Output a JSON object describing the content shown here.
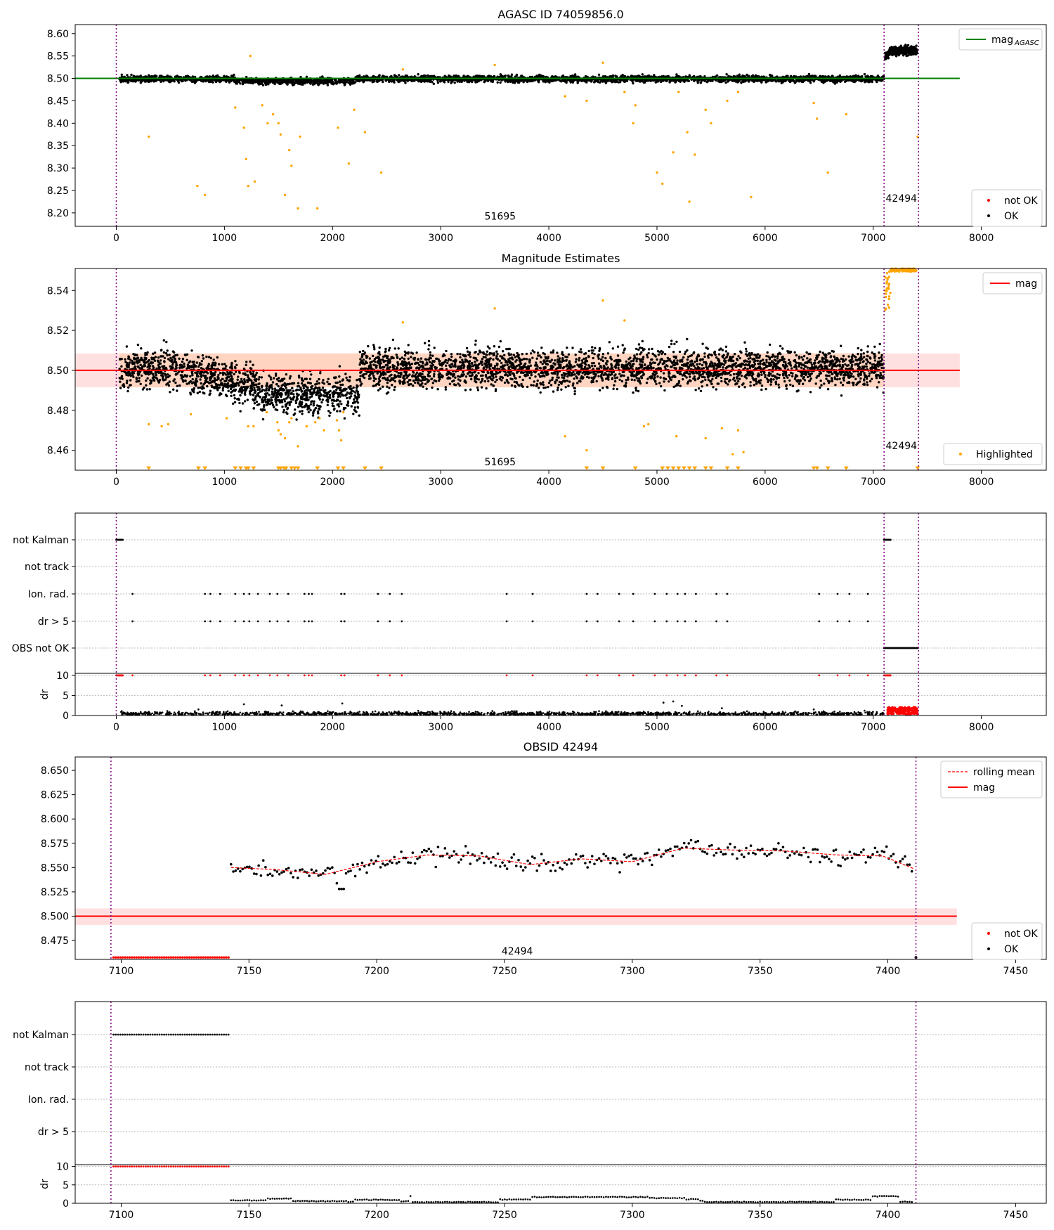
{
  "chart_data": [
    {
      "type": "scatter",
      "title": "AGASC ID 74059856.0",
      "xlabel": "",
      "ylabel": "",
      "xlim": [
        -380,
        8600
      ],
      "ylim": [
        8.17,
        8.62
      ],
      "xticks": [
        0,
        1000,
        2000,
        3000,
        4000,
        5000,
        6000,
        7000,
        8000
      ],
      "yticks": [
        8.2,
        8.25,
        8.3,
        8.35,
        8.4,
        8.45,
        8.5,
        8.55,
        8.6
      ],
      "ytick_labels": [
        "8.20",
        "8.25",
        "8.30",
        "8.35",
        "8.40",
        "8.45",
        "8.50",
        "8.55",
        "8.60"
      ],
      "legend_upper": {
        "position": "top-right",
        "entries": [
          {
            "label": "mag",
            "sub": "AGASC",
            "color": "#008000",
            "kind": "line"
          }
        ]
      },
      "legend_lower": {
        "position": "bottom-right",
        "entries": [
          {
            "label": "not OK",
            "color": "#ff0000",
            "kind": "dot"
          },
          {
            "label": "OK",
            "color": "#000000",
            "kind": "dot"
          }
        ]
      },
      "reference_line": {
        "y": 8.5,
        "x0": -380,
        "x1": 7800,
        "color": "#008000"
      },
      "obs_boundaries": [
        0,
        7100,
        7418
      ],
      "obs_labels": [
        {
          "text": "51695",
          "x": 3550,
          "y": 8.185
        },
        {
          "text": "42494",
          "x": 7260,
          "y": 8.225
        }
      ],
      "series": [
        {
          "name": "OK",
          "color": "#000000",
          "x_range": [
            30,
            7100
          ],
          "center": 8.499,
          "spread": 0.006,
          "segment2": {
            "x_range": [
              7110,
              7405
            ],
            "center": 8.562,
            "spread": 0.008
          }
        },
        {
          "name": "Highlighted",
          "color": "#ffa500",
          "points": [
            [
              300,
              8.37
            ],
            [
              750,
              8.26
            ],
            [
              820,
              8.24
            ],
            [
              1100,
              8.435
            ],
            [
              1180,
              8.39
            ],
            [
              1200,
              8.32
            ],
            [
              1220,
              8.26
            ],
            [
              1240,
              8.55
            ],
            [
              1280,
              8.27
            ],
            [
              1350,
              8.44
            ],
            [
              1400,
              8.4
            ],
            [
              1450,
              8.42
            ],
            [
              1500,
              8.4
            ],
            [
              1520,
              8.375
            ],
            [
              1560,
              8.24
            ],
            [
              1600,
              8.34
            ],
            [
              1620,
              8.305
            ],
            [
              1680,
              8.21
            ],
            [
              1700,
              8.37
            ],
            [
              1860,
              8.21
            ],
            [
              2050,
              8.39
            ],
            [
              2150,
              8.31
            ],
            [
              2200,
              8.43
            ],
            [
              2300,
              8.38
            ],
            [
              2450,
              8.29
            ],
            [
              2650,
              8.52
            ],
            [
              3500,
              8.53
            ],
            [
              4150,
              8.46
            ],
            [
              4350,
              8.45
            ],
            [
              4500,
              8.535
            ],
            [
              4700,
              8.47
            ],
            [
              4780,
              8.4
            ],
            [
              4800,
              8.44
            ],
            [
              5000,
              8.29
            ],
            [
              5050,
              8.265
            ],
            [
              5150,
              8.335
            ],
            [
              5200,
              8.47
            ],
            [
              5280,
              8.38
            ],
            [
              5300,
              8.225
            ],
            [
              5350,
              8.33
            ],
            [
              5450,
              8.43
            ],
            [
              5500,
              8.4
            ],
            [
              5650,
              8.45
            ],
            [
              5750,
              8.47
            ],
            [
              5870,
              8.235
            ],
            [
              6450,
              8.445
            ],
            [
              6480,
              8.41
            ],
            [
              6580,
              8.29
            ],
            [
              6750,
              8.42
            ],
            [
              7410,
              8.37
            ]
          ]
        }
      ]
    },
    {
      "type": "scatter",
      "title": "Magnitude Estimates",
      "xlabel": "",
      "ylabel": "",
      "xlim": [
        -380,
        8600
      ],
      "ylim": [
        8.45,
        8.551
      ],
      "xticks": [
        0,
        1000,
        2000,
        3000,
        4000,
        5000,
        6000,
        7000,
        8000
      ],
      "yticks": [
        8.46,
        8.48,
        8.5,
        8.52,
        8.54
      ],
      "ytick_labels": [
        "8.46",
        "8.48",
        "8.50",
        "8.52",
        "8.54"
      ],
      "legend_upper": {
        "position": "top-right",
        "entries": [
          {
            "label": "mag",
            "color": "#ff0000",
            "kind": "line"
          }
        ]
      },
      "legend_lower": {
        "position": "bottom-right",
        "entries": [
          {
            "label": "Highlighted",
            "color": "#ffa500",
            "kind": "dot"
          }
        ]
      },
      "reference_line": {
        "y": 8.5,
        "x0": -380,
        "x1": 7800,
        "color": "#ff0000",
        "band": [
          8.4915,
          8.5085
        ]
      },
      "obs_boundaries": [
        0,
        7100,
        7418
      ],
      "obs_labels": [
        {
          "text": "51695",
          "x": 3550,
          "y": 8.4525
        },
        {
          "text": "42494",
          "x": 7260,
          "y": 8.4605
        }
      ],
      "series": [
        {
          "name": "OK",
          "color": "#000000",
          "x_range": [
            30,
            7100
          ],
          "center": 8.499,
          "spread": 0.0075
        },
        {
          "name": "Highlighted",
          "color": "#ffa500",
          "clipped_low_x": [
            300,
            760,
            820,
            1100,
            1150,
            1200,
            1220,
            1270,
            1500,
            1520,
            1550,
            1570,
            1620,
            1650,
            1680,
            1860,
            2050,
            2100,
            2300,
            2450,
            4350,
            4500,
            4800,
            5050,
            5100,
            5150,
            5200,
            5250,
            5300,
            5350,
            5450,
            5500,
            5650,
            5750,
            6450,
            6480,
            6580,
            6750,
            7410
          ]
        }
      ]
    },
    {
      "type": "scatter",
      "title": "",
      "xlabel": "",
      "ylabel": "dr",
      "xlim": [
        -380,
        8600
      ],
      "xticks": [
        0,
        1000,
        2000,
        3000,
        4000,
        5000,
        6000,
        7000,
        8000
      ],
      "flag_rows": [
        "not Kalman",
        "not track",
        "Ion. rad.",
        "dr > 5",
        "OBS not OK"
      ],
      "dr_ylim": [
        0,
        10.5
      ],
      "dr_ticks": [
        0,
        5,
        10
      ],
      "obs_boundaries": [
        0,
        7100,
        7418
      ],
      "flag_events_x": [
        150,
        820,
        870,
        960,
        1100,
        1180,
        1230,
        1310,
        1420,
        1490,
        1590,
        1740,
        1780,
        1810,
        2080,
        2110,
        2420,
        2530,
        2640,
        3610,
        3850,
        4350,
        4450,
        4650,
        4780,
        4980,
        5090,
        5190,
        5260,
        5360,
        5550,
        5650,
        6500,
        6670,
        6780,
        6950
      ]
    },
    {
      "type": "scatter",
      "title": "OBSID 42494",
      "xlabel": "",
      "ylabel": "",
      "xlim": [
        7082,
        7462
      ],
      "ylim": [
        8.4555,
        8.6638
      ],
      "xticks": [
        7100,
        7150,
        7200,
        7250,
        7300,
        7350,
        7400,
        7450
      ],
      "yticks": [
        8.475,
        8.5,
        8.525,
        8.55,
        8.575,
        8.6,
        8.625,
        8.65
      ],
      "ytick_labels": [
        "8.475",
        "8.500",
        "8.525",
        "8.550",
        "8.575",
        "8.600",
        "8.625",
        "8.650"
      ],
      "legend_upper": {
        "position": "top-right",
        "entries": [
          {
            "label": "rolling mean",
            "color": "#ff0000",
            "kind": "dashed"
          },
          {
            "label": "mag",
            "color": "#ff0000",
            "kind": "line"
          }
        ]
      },
      "legend_lower": {
        "position": "bottom-right",
        "entries": [
          {
            "label": "not OK",
            "color": "#ff0000",
            "kind": "dot"
          },
          {
            "label": "OK",
            "color": "#000000",
            "kind": "dot"
          }
        ]
      },
      "reference_line": {
        "y": 8.5,
        "x0": 7082,
        "x1": 7427,
        "color": "#ff0000",
        "band": [
          8.491,
          8.508
        ]
      },
      "obs_boundaries": [
        7096,
        7411
      ],
      "obs_labels": [
        {
          "text": "42494",
          "x": 7255,
          "y": 8.4605
        }
      ],
      "not_ok_x_range": [
        7097,
        7142
      ],
      "not_ok_y": 8.4575,
      "rolling_mean": [
        [
          7143,
          8.55
        ],
        [
          7160,
          8.548
        ],
        [
          7180,
          8.543
        ],
        [
          7200,
          8.556
        ],
        [
          7220,
          8.563
        ],
        [
          7240,
          8.562
        ],
        [
          7260,
          8.553
        ],
        [
          7280,
          8.559
        ],
        [
          7300,
          8.556
        ],
        [
          7320,
          8.57
        ],
        [
          7340,
          8.568
        ],
        [
          7360,
          8.567
        ],
        [
          7380,
          8.563
        ],
        [
          7398,
          8.562
        ],
        [
          7410,
          8.549
        ]
      ]
    },
    {
      "type": "scatter",
      "title": "",
      "xlabel": "",
      "ylabel": "dr",
      "xlim": [
        7082,
        7462
      ],
      "xticks": [
        7100,
        7150,
        7200,
        7250,
        7300,
        7350,
        7400,
        7450
      ],
      "flag_rows": [
        "not Kalman",
        "not track",
        "Ion. rad.",
        "dr > 5"
      ],
      "dr_ylim": [
        0,
        10.5
      ],
      "dr_ticks": [
        0,
        5,
        10
      ],
      "obs_boundaries": [
        7096,
        7411
      ],
      "not_kalman_x_range": [
        7097,
        7142
      ]
    }
  ]
}
